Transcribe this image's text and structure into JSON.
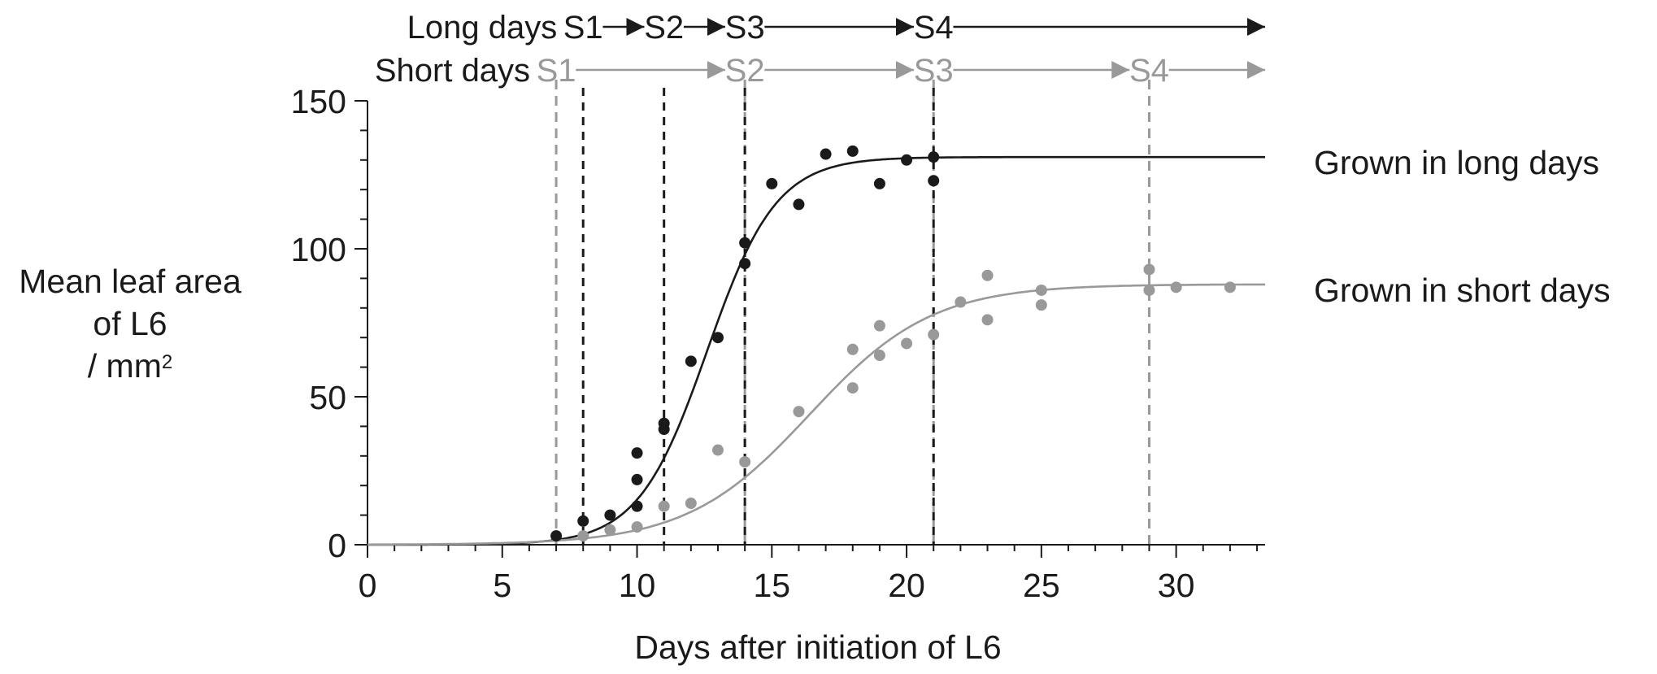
{
  "chart_data": {
    "type": "scatter",
    "xlabel": "Days after initiation of L6",
    "ylabel": {
      "line1": "Mean leaf area",
      "line2": "of L6",
      "line3_prefix": "/ mm",
      "line3_sup": "2"
    },
    "xlim": [
      0,
      33.3
    ],
    "ylim": [
      0,
      150
    ],
    "x_ticks": [
      0,
      5,
      10,
      15,
      20,
      25,
      30
    ],
    "y_ticks": [
      0,
      50,
      100,
      150
    ],
    "y_minor_step": 10,
    "grid": false,
    "series": [
      {
        "name": "Grown in long days",
        "color": "#1a1a1a",
        "points": [
          [
            7,
            3
          ],
          [
            8,
            8
          ],
          [
            9,
            10
          ],
          [
            10,
            31
          ],
          [
            10,
            22
          ],
          [
            10,
            13
          ],
          [
            11,
            41
          ],
          [
            11,
            39
          ],
          [
            12,
            62
          ],
          [
            13,
            70
          ],
          [
            14,
            102
          ],
          [
            14,
            95
          ],
          [
            15,
            122
          ],
          [
            16,
            115
          ],
          [
            17,
            132
          ],
          [
            18,
            133
          ],
          [
            19,
            122
          ],
          [
            20,
            130
          ],
          [
            21,
            131
          ],
          [
            21,
            123
          ]
        ],
        "fit": {
          "model": "logistic",
          "K": 131,
          "r": 0.78,
          "x0": 12.6
        }
      },
      {
        "name": "Grown in short days",
        "color": "#999999",
        "points": [
          [
            8,
            3
          ],
          [
            9,
            5
          ],
          [
            10,
            6
          ],
          [
            11,
            13
          ],
          [
            12,
            14
          ],
          [
            13,
            32
          ],
          [
            14,
            28
          ],
          [
            16,
            45
          ],
          [
            18,
            53
          ],
          [
            18,
            66
          ],
          [
            19,
            64
          ],
          [
            19,
            74
          ],
          [
            20,
            68
          ],
          [
            21,
            71
          ],
          [
            22,
            82
          ],
          [
            23,
            91
          ],
          [
            23,
            76
          ],
          [
            25,
            86
          ],
          [
            25,
            81
          ],
          [
            29,
            93
          ],
          [
            29,
            86
          ],
          [
            30,
            87
          ],
          [
            32,
            87
          ]
        ],
        "fit": {
          "model": "logistic",
          "K": 88,
          "r": 0.44,
          "x0": 16.4
        }
      }
    ],
    "stage_rows": [
      {
        "label": "Long days",
        "color": "#1a1a1a",
        "stages": [
          {
            "name": "S1",
            "day": 8
          },
          {
            "name": "S2",
            "day": 11
          },
          {
            "name": "S3",
            "day": 14
          },
          {
            "name": "S4",
            "day": 21
          }
        ]
      },
      {
        "label": "Short days",
        "color": "#999999",
        "stages": [
          {
            "name": "S1",
            "day": 7
          },
          {
            "name": "S2",
            "day": 14
          },
          {
            "name": "S3",
            "day": 21
          },
          {
            "name": "S4",
            "day": 29
          }
        ]
      }
    ]
  }
}
